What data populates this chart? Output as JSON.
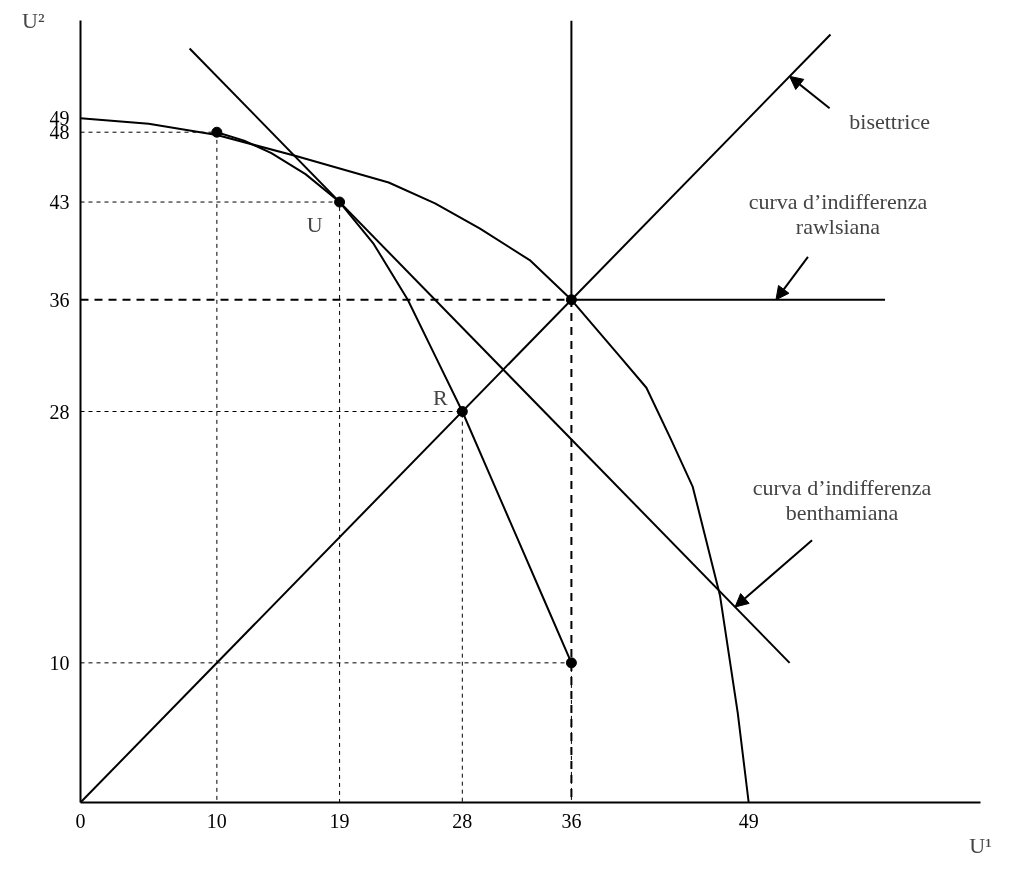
{
  "chart_data": {
    "type": "line",
    "xlabel": "U¹",
    "ylabel": "U²",
    "xlim": [
      0,
      66
    ],
    "ylim": [
      0,
      56
    ],
    "xticks": [
      0,
      10,
      19,
      28,
      36,
      49
    ],
    "yticks": [
      10,
      28,
      36,
      43,
      48,
      49
    ],
    "grid": false,
    "series": [
      {
        "color": "#000000",
        "line_style": "solid",
        "x": [
          0,
          5,
          10,
          15.8,
          22.6,
          26,
          29.3,
          33,
          36,
          39.5,
          41.5,
          43.3,
          44.9,
          46.9,
          48.2,
          49
        ],
        "values": [
          49,
          48.6,
          47.8,
          46.3,
          44.4,
          42.9,
          41.1,
          38.8,
          36,
          32,
          29.7,
          26,
          22.6,
          14.8,
          6.4,
          0
        ]
      },
      {
        "color": "#000000",
        "line_style": "solid",
        "x": [
          10,
          12,
          14,
          16.5,
          19,
          21.5,
          24,
          26,
          28,
          30,
          32,
          34,
          36
        ],
        "values": [
          48,
          47.4,
          46.5,
          45,
          43,
          40,
          36,
          32,
          28,
          23.5,
          19,
          14.5,
          10
        ]
      },
      {
        "color": "#000000",
        "line_style": "solid",
        "x": [
          8,
          52
        ],
        "values": [
          54,
          10
        ]
      },
      {
        "color": "#000000",
        "line_style": "solid",
        "x": [
          0,
          55
        ],
        "values": [
          0,
          55
        ]
      },
      {
        "color": "#000000",
        "line_style": "solid",
        "x": [
          36,
          36,
          59
        ],
        "values": [
          56,
          36,
          36
        ]
      },
      {
        "color": "#000000",
        "line_style": "dashed",
        "x": [
          0,
          36,
          36
        ],
        "values": [
          36,
          36,
          0
        ]
      },
      {
        "color": "#000000",
        "line_style": "dotted",
        "x": [
          0,
          10,
          10
        ],
        "values": [
          48,
          48,
          0
        ]
      },
      {
        "color": "#000000",
        "line_style": "dotted",
        "x": [
          0,
          19,
          19
        ],
        "values": [
          43,
          43,
          0
        ]
      },
      {
        "color": "#000000",
        "line_style": "dotted",
        "x": [
          0,
          28,
          28
        ],
        "values": [
          28,
          28,
          0
        ]
      },
      {
        "color": "#000000",
        "line_style": "dotted",
        "x": [
          0,
          36,
          36
        ],
        "values": [
          10,
          10,
          0
        ]
      },
      {
        "type": "scatter",
        "marker": "circle",
        "color": "#000000",
        "x": [
          10,
          19,
          28,
          36,
          36
        ],
        "values": [
          48,
          43,
          28,
          36,
          10
        ]
      }
    ],
    "annotations": [
      {
        "text": "U",
        "x": 19,
        "y": 43
      },
      {
        "text": "R",
        "x": 28,
        "y": 28
      },
      {
        "text": "bisettrice",
        "x": 52,
        "y": 52
      },
      {
        "text": "curva d’indifferenza\nrawlsiana",
        "x": 51,
        "y": 36
      },
      {
        "text": "curva d’indifferenza\nbenthamiana",
        "x": 48,
        "y": 14
      }
    ]
  }
}
